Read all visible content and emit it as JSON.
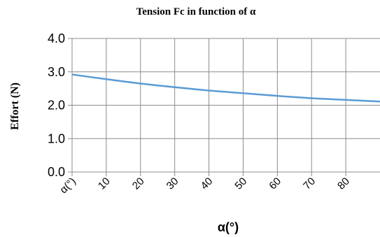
{
  "chart_data": {
    "type": "line",
    "title": "Tension Fc in function of α",
    "xlabel": "α(°)",
    "ylabel": "Effort (N)",
    "x_tick_labels": [
      "α(°)",
      "10",
      "20",
      "30",
      "40",
      "50",
      "60",
      "70",
      "80"
    ],
    "y_tick_labels": [
      "0.0",
      "1.0",
      "2.0",
      "3.0",
      "4.0"
    ],
    "xlim": [
      0,
      90
    ],
    "ylim": [
      0,
      4
    ],
    "grid": true,
    "series": [
      {
        "color": "#5b9bd5",
        "x": [
          0,
          10,
          20,
          30,
          40,
          50,
          60,
          70,
          80,
          90
        ],
        "y": [
          2.92,
          2.78,
          2.65,
          2.54,
          2.44,
          2.36,
          2.28,
          2.21,
          2.16,
          2.11
        ]
      }
    ]
  }
}
